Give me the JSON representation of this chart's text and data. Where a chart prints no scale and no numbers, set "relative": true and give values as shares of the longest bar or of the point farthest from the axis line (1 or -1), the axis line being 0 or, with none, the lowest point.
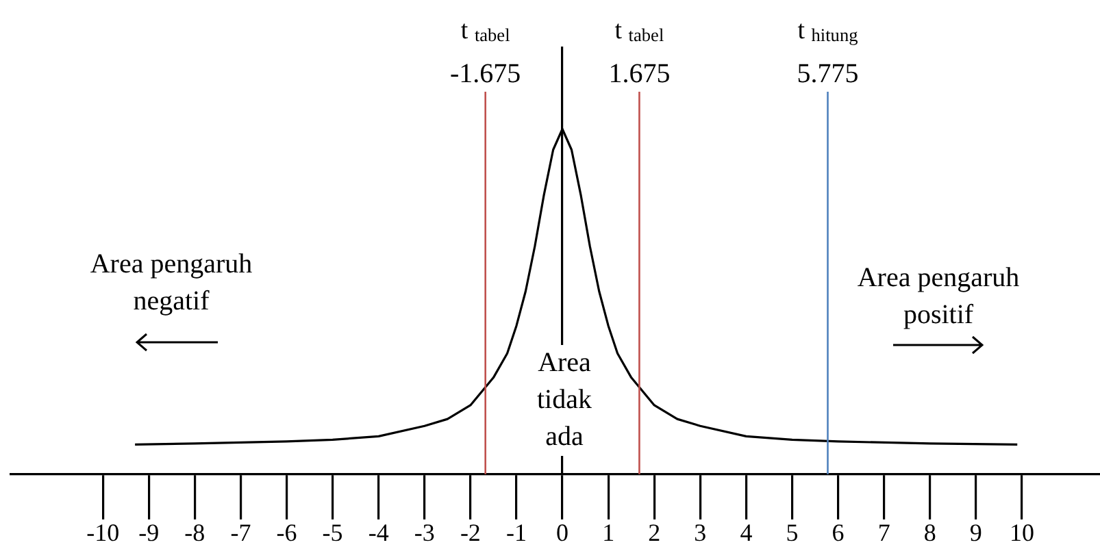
{
  "chart_data": {
    "type": "line",
    "relative": true,
    "marker": "none",
    "line_style": "solid",
    "x": [
      -9.3,
      -8,
      -6,
      -5,
      -4,
      -3,
      -2.5,
      -2,
      -1.5,
      -1.2,
      -1,
      -0.8,
      -0.6,
      -0.4,
      -0.2,
      0,
      0.2,
      0.4,
      0.6,
      0.8,
      1,
      1.2,
      1.5,
      2,
      2.5,
      3,
      4,
      5,
      6,
      8,
      9.9
    ],
    "series": [
      {
        "color": "#000000",
        "values": [
          0.086,
          0.089,
          0.095,
          0.1,
          0.11,
          0.14,
          0.16,
          0.2,
          0.28,
          0.35,
          0.43,
          0.53,
          0.66,
          0.81,
          0.94,
          1,
          0.94,
          0.81,
          0.66,
          0.53,
          0.43,
          0.35,
          0.28,
          0.2,
          0.16,
          0.14,
          0.11,
          0.1,
          0.095,
          0.089,
          0.086
        ]
      }
    ],
    "xlim": [
      -12,
      11.7
    ],
    "xticks": [
      -10,
      -9,
      -8,
      -7,
      -6,
      -5,
      -4,
      -3,
      -2,
      -1,
      0,
      1,
      2,
      3,
      4,
      5,
      6,
      7,
      8,
      9,
      10
    ],
    "ref_lines": [
      {
        "axis": "x",
        "value": -1.675,
        "label": "t $_{tabel}$\n-1.675",
        "color": "#c0504d"
      },
      {
        "axis": "x",
        "value": 1.675,
        "label": "t $_{tabel}$\n1.675",
        "color": "#c0504d"
      },
      {
        "axis": "x",
        "value": 5.775,
        "label": "t $_{hitung}$\n5.775",
        "color": "#4f81bd"
      }
    ],
    "annotations": [
      "Area pengaruh\nnegatif",
      "Area pengaruh\npositif",
      "Area\ntidak\nada"
    ]
  }
}
